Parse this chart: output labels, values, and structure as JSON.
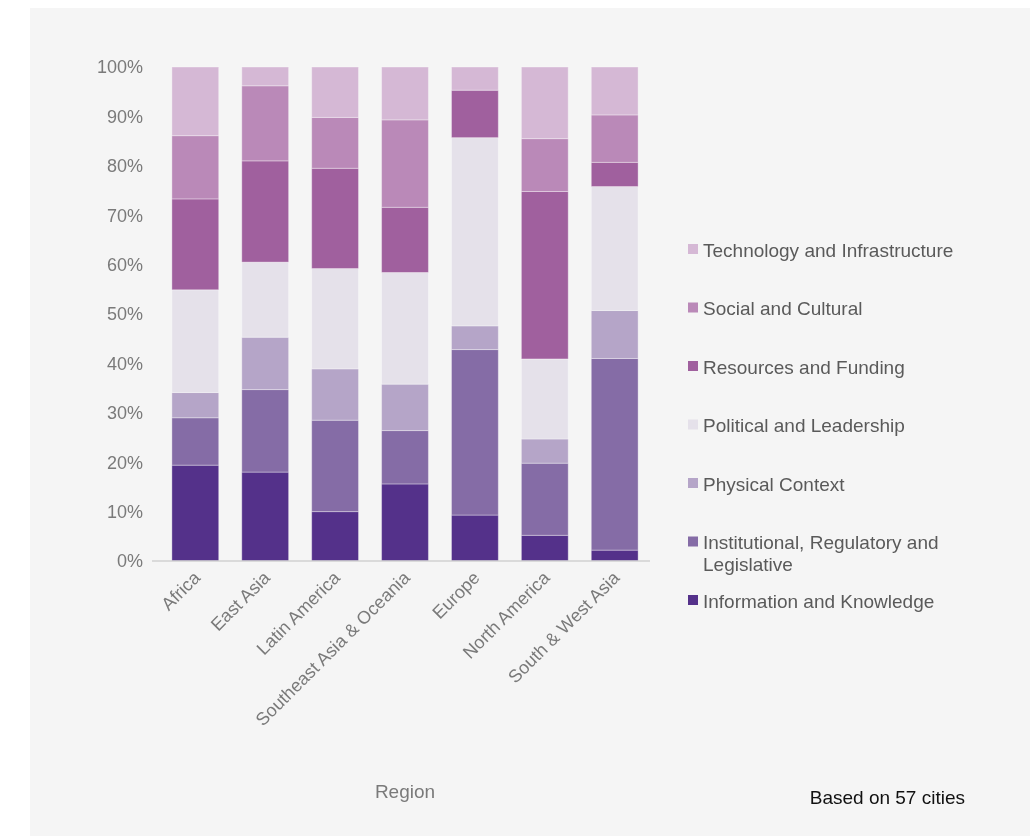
{
  "chart_data": {
    "type": "bar",
    "stacked": true,
    "xlabel": "Region",
    "annotations": [
      "Based on 57 cities"
    ],
    "categories": [
      "Africa",
      "East Asia",
      "Latin America",
      "Southeast Asia & Oceania",
      "Europe",
      "North America",
      "South & West Asia"
    ],
    "ylim": [
      0,
      100
    ],
    "yticks": [
      {
        "value": 0,
        "label": "0%"
      },
      {
        "value": 10,
        "label": "10%"
      },
      {
        "value": 20,
        "label": "20%"
      },
      {
        "value": 30,
        "label": "30%"
      },
      {
        "value": 40,
        "label": "40%"
      },
      {
        "value": 50,
        "label": "50%"
      },
      {
        "value": 60,
        "label": "60%"
      },
      {
        "value": 70,
        "label": "70%"
      },
      {
        "value": 80,
        "label": "80%"
      },
      {
        "value": 90,
        "label": "90%"
      },
      {
        "value": 100,
        "label": "100%"
      }
    ],
    "grid": false,
    "legend": "right",
    "series": [
      {
        "name": "Information and Knowledge",
        "color": "#54318a",
        "values": [
          19.4,
          18.0,
          10.0,
          15.6,
          9.3,
          5.2,
          2.2
        ]
      },
      {
        "name": "Institutional, Regulatory and Legislative",
        "color": "#856ca6",
        "values": [
          9.6,
          16.7,
          18.5,
          10.8,
          33.5,
          14.6,
          38.8
        ]
      },
      {
        "name": "Physical Context",
        "color": "#b5a5c8",
        "values": [
          5.1,
          10.6,
          10.4,
          9.4,
          4.8,
          4.9,
          9.7
        ]
      },
      {
        "name": "Political and Leadership",
        "color": "#e5e1ea",
        "values": [
          20.8,
          15.2,
          20.3,
          22.6,
          38.1,
          16.2,
          25.1
        ]
      },
      {
        "name": "Resources and Funding",
        "color": "#a0609e",
        "values": [
          18.4,
          20.5,
          20.3,
          13.2,
          9.6,
          33.9,
          4.9
        ]
      },
      {
        "name": "Social and Cultural",
        "color": "#ba89b8",
        "values": [
          12.8,
          15.2,
          10.3,
          17.7,
          0,
          10.7,
          9.6
        ]
      },
      {
        "name": "Technology and Infrastructure",
        "color": "#d5b8d5",
        "values": [
          13.9,
          3.8,
          10.2,
          10.7,
          4.7,
          14.5,
          9.7
        ]
      }
    ]
  }
}
